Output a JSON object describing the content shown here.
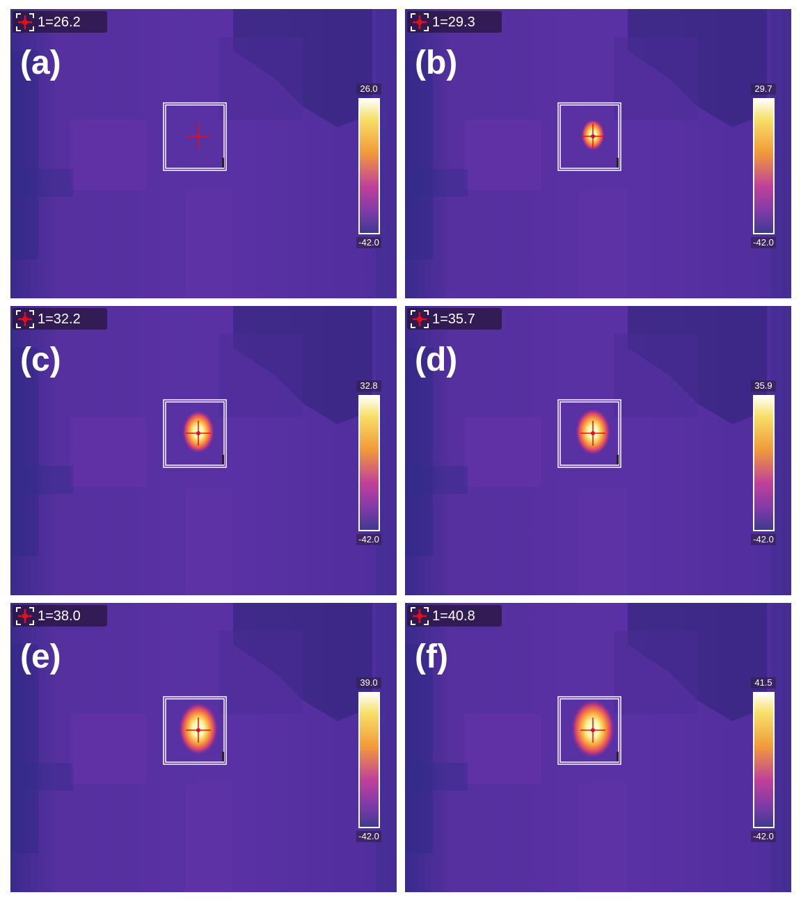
{
  "panels": [
    {
      "label": "(a)",
      "reading": "1=26.2",
      "scale_max": "26.0",
      "scale_min": "-42.0"
    },
    {
      "label": "(b)",
      "reading": "1=29.3",
      "scale_max": "29.7",
      "scale_min": "-42.0"
    },
    {
      "label": "(c)",
      "reading": "1=32.2",
      "scale_max": "32.8",
      "scale_min": "-42.0"
    },
    {
      "label": "(d)",
      "reading": "1=35.7",
      "scale_max": "35.9",
      "scale_min": "-42.0"
    },
    {
      "label": "(e)",
      "reading": "1=38.0",
      "scale_max": "39.0",
      "scale_min": "-42.0"
    },
    {
      "label": "(f)",
      "reading": "1=40.8",
      "scale_max": "41.5",
      "scale_min": "-42.0"
    }
  ]
}
